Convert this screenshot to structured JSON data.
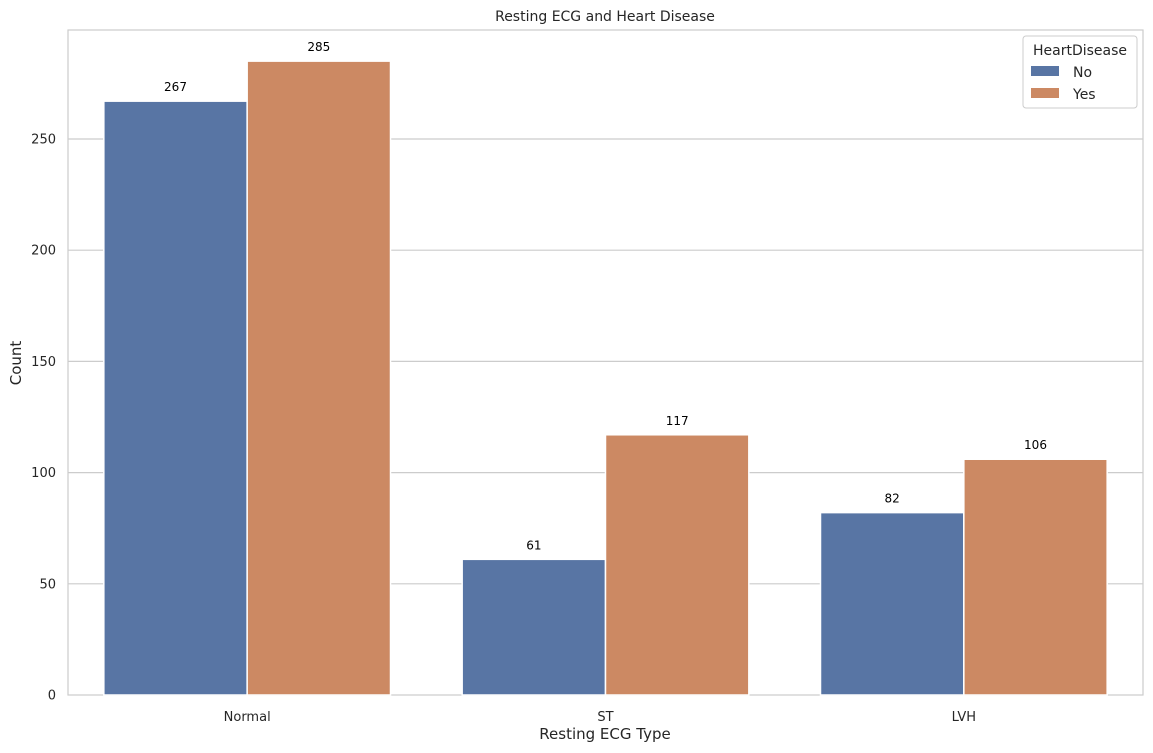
{
  "chart_data": {
    "type": "bar",
    "title": "Resting ECG and Heart Disease",
    "xlabel": "Resting ECG Type",
    "ylabel": "Count",
    "categories": [
      "Normal",
      "ST",
      "LVH"
    ],
    "series": [
      {
        "name": "No",
        "values": [
          267,
          61,
          82
        ],
        "color": "#5875a4"
      },
      {
        "name": "Yes",
        "values": [
          285,
          117,
          106
        ],
        "color": "#cc8963"
      }
    ],
    "ylim": [
      0,
      299
    ],
    "yticks": [
      0,
      50,
      100,
      150,
      200,
      250
    ],
    "grid": true,
    "legend": {
      "title": "HeartDisease",
      "position": "top-right"
    }
  }
}
